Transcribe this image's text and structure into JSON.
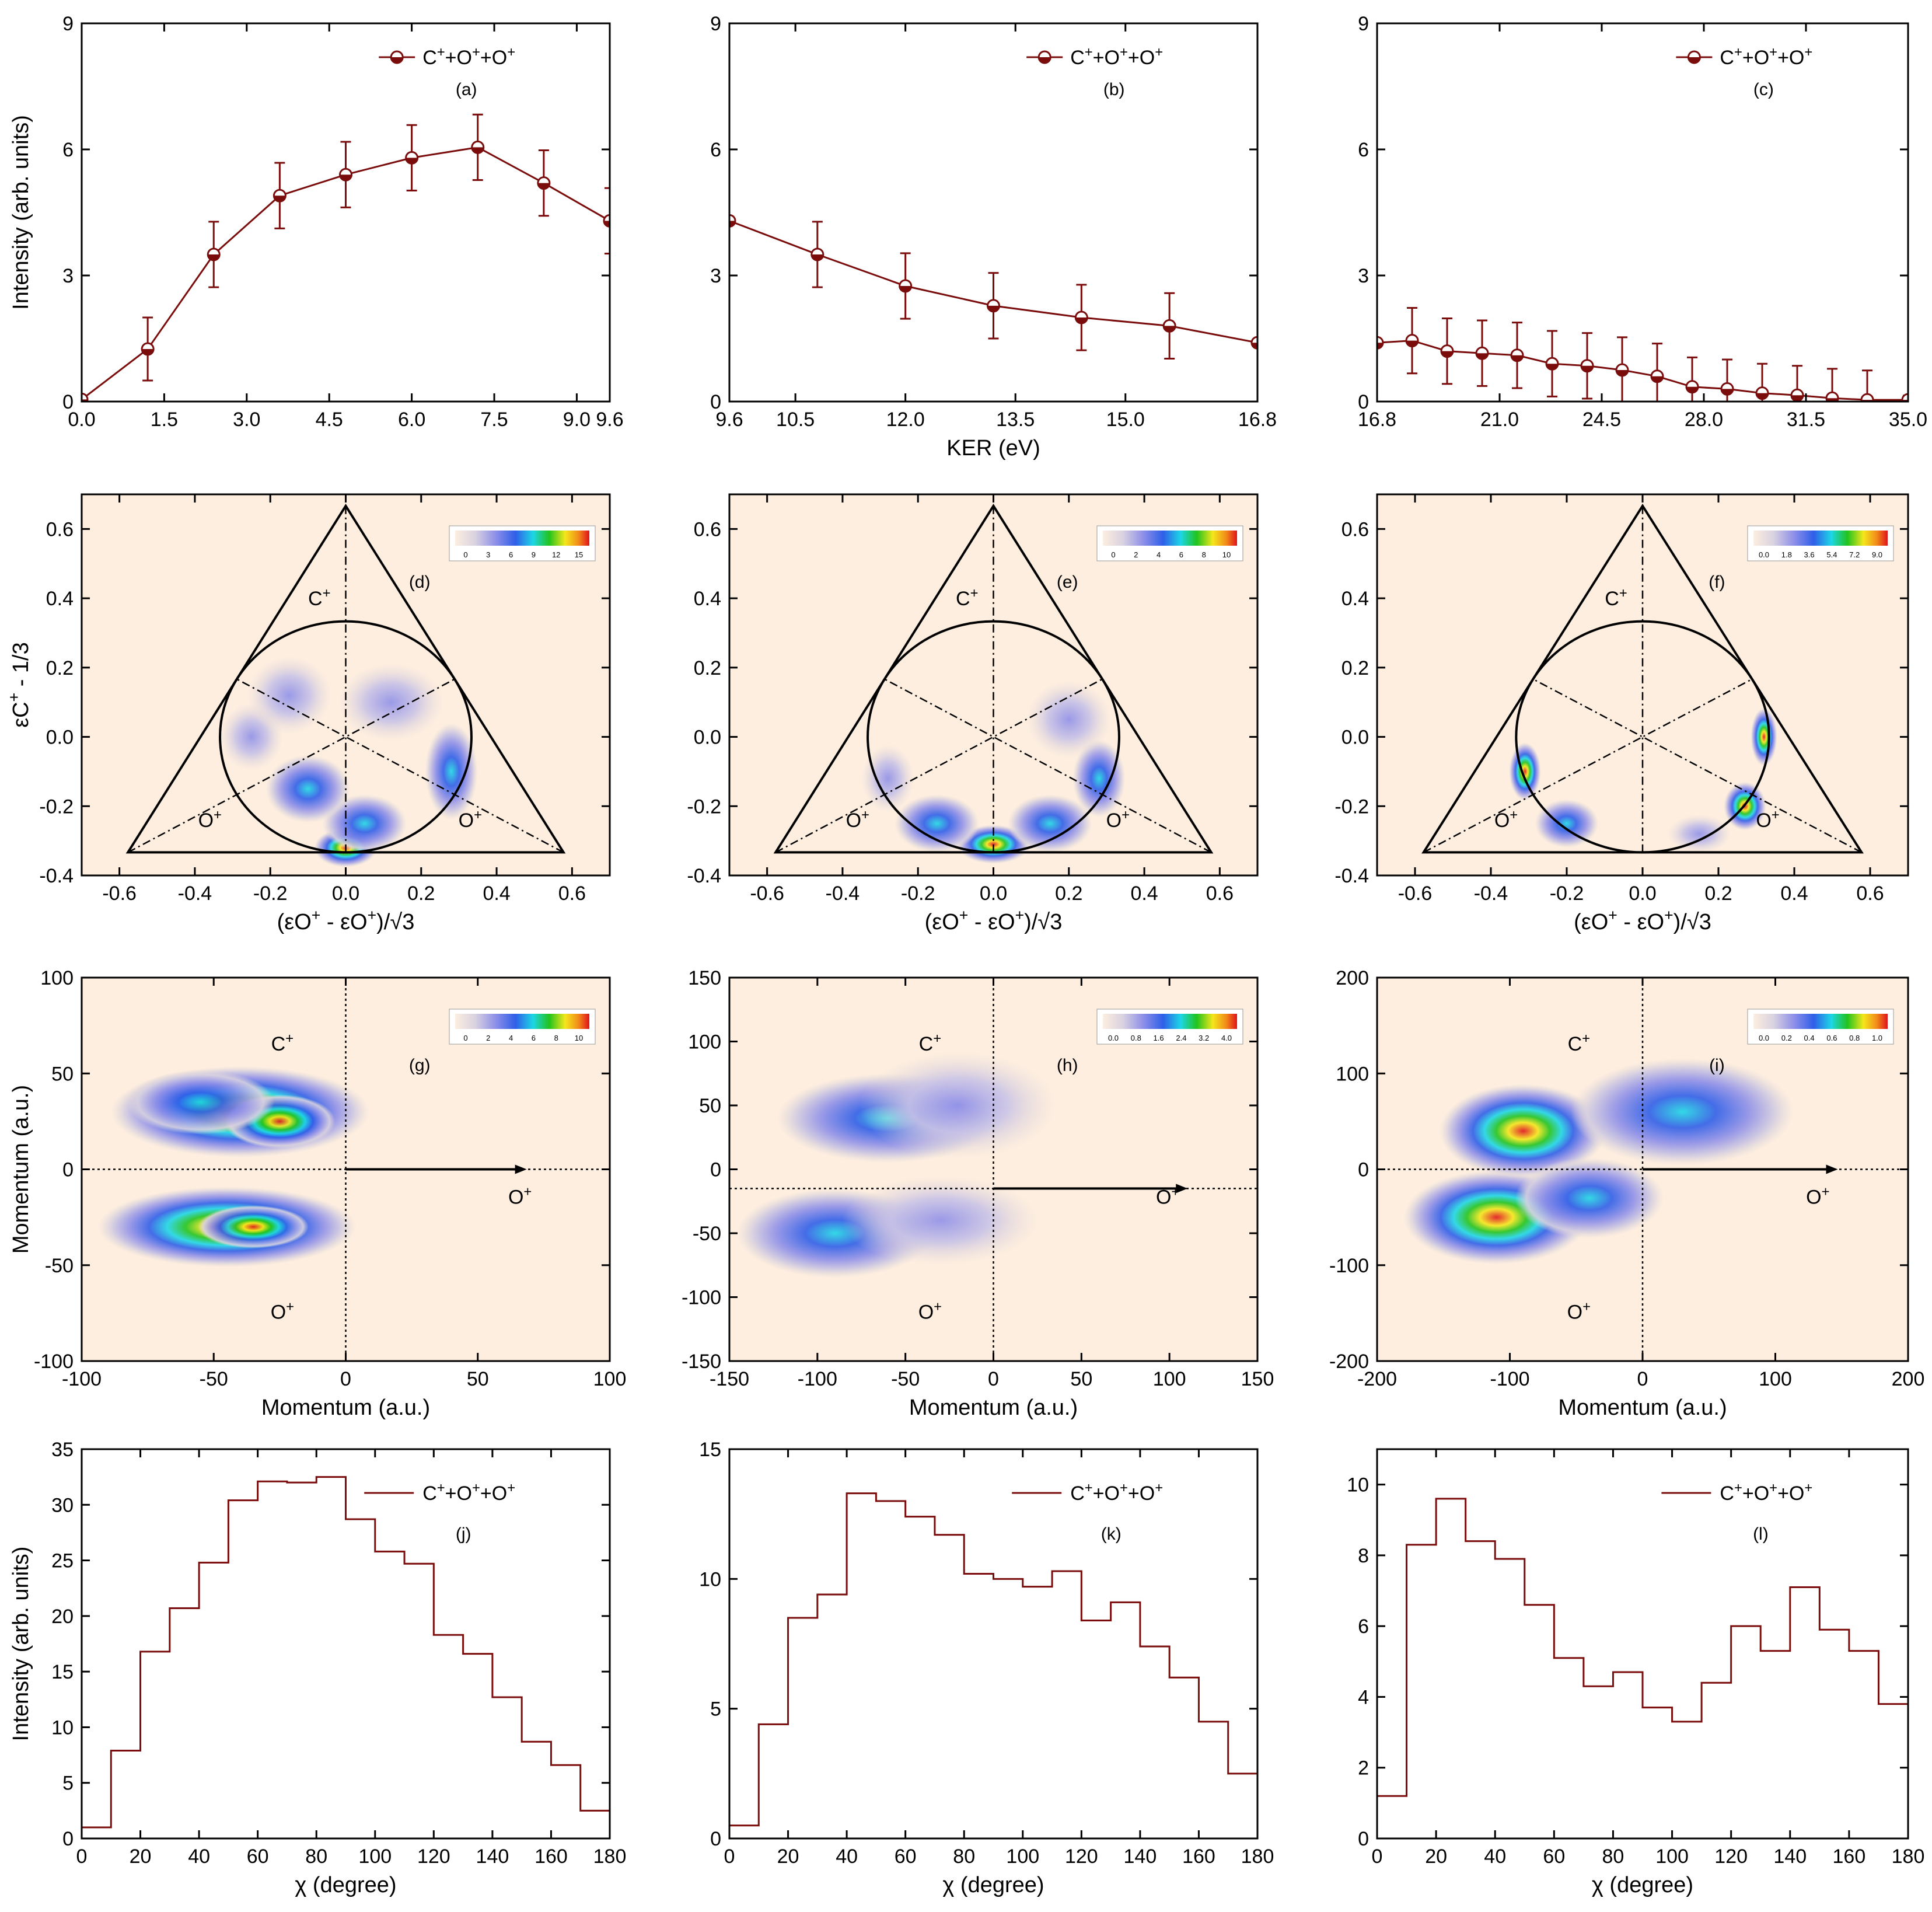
{
  "colors": {
    "series": "#7a0c0c",
    "background": "#fdeee0"
  },
  "chart_data": [
    {
      "id": "a",
      "type": "line",
      "label": "(a)",
      "legend": "C⁺+O⁺+O⁺",
      "xlabel": "",
      "ylabel": "Intensity (arb. units)",
      "xlim": [
        0,
        9.6
      ],
      "ylim": [
        0,
        9
      ],
      "xticks": [
        "0.0",
        "1.5",
        "3.0",
        "4.5",
        "6.0",
        "7.5",
        "9.0",
        "9.6"
      ],
      "yticks": [
        "0",
        "3",
        "6",
        "9"
      ],
      "x": [
        0,
        1.2,
        2.4,
        3.6,
        4.8,
        6.0,
        7.2,
        8.4,
        9.6
      ],
      "y": [
        0.05,
        1.25,
        3.5,
        4.9,
        5.4,
        5.8,
        6.05,
        5.2,
        4.3
      ],
      "err": [
        0.05,
        0.75,
        0.78,
        0.78,
        0.78,
        0.78,
        0.78,
        0.78,
        0.78
      ]
    },
    {
      "id": "b",
      "type": "line",
      "label": "(b)",
      "legend": "C⁺+O⁺+O⁺",
      "xlabel": "KER (eV)",
      "ylabel": "",
      "xlim": [
        9.6,
        16.8
      ],
      "ylim": [
        0,
        9
      ],
      "xticks": [
        "9.6",
        "10.5",
        "12.0",
        "13.5",
        "15.0",
        "16.8"
      ],
      "yticks": [
        "0",
        "3",
        "6",
        "9"
      ],
      "x": [
        9.6,
        10.8,
        12.0,
        13.2,
        14.4,
        15.6,
        16.8
      ],
      "y": [
        4.3,
        3.5,
        2.75,
        2.28,
        2.0,
        1.8,
        1.4
      ],
      "err": [
        0,
        0.78,
        0.78,
        0.78,
        0.78,
        0.78,
        0
      ]
    },
    {
      "id": "c",
      "type": "line",
      "label": "(c)",
      "legend": "C⁺+O⁺+O⁺",
      "xlabel": "",
      "ylabel": "",
      "xlim": [
        16.8,
        35.0
      ],
      "ylim": [
        0,
        9
      ],
      "xticks": [
        "16.8",
        "21.0",
        "24.5",
        "28.0",
        "31.5",
        "35.0"
      ],
      "yticks": [
        "0",
        "3",
        "6",
        "9"
      ],
      "x": [
        16.8,
        18.0,
        19.2,
        20.4,
        21.6,
        22.8,
        24.0,
        25.2,
        26.4,
        27.6,
        28.8,
        30.0,
        31.2,
        32.4,
        33.6,
        35.0
      ],
      "y": [
        1.4,
        1.45,
        1.2,
        1.15,
        1.1,
        0.9,
        0.85,
        0.75,
        0.6,
        0.35,
        0.3,
        0.2,
        0.15,
        0.08,
        0.04,
        0.04
      ],
      "err": [
        0,
        0.78,
        0.78,
        0.78,
        0.78,
        0.78,
        0.78,
        0.78,
        0.78,
        0.7,
        0.7,
        0.7,
        0.7,
        0.7,
        0.7,
        0.1
      ]
    },
    {
      "id": "d",
      "type": "heatmap",
      "label": "(d)",
      "xlabel": "(εO⁺ - εO⁺)/√3",
      "ylabel": "εC⁺ - 1/3",
      "xlim": [
        -0.7,
        0.7
      ],
      "ylim": [
        -0.4,
        0.7
      ],
      "xticks": [
        "-0.6",
        "-0.4",
        "-0.2",
        "0.0",
        "0.2",
        "0.4",
        "0.6"
      ],
      "yticks": [
        "-0.4",
        "-0.2",
        "0.0",
        "0.2",
        "0.4",
        "0.6"
      ],
      "colorbar": [
        "0",
        "3",
        "6",
        "9",
        "12",
        "15"
      ],
      "ions": [
        "C⁺",
        "O⁺",
        "O⁺"
      ],
      "blobs": [
        [
          0.0,
          -0.32,
          0.06,
          0.04,
          1.0
        ],
        [
          0.05,
          -0.25,
          0.08,
          0.06,
          0.7
        ],
        [
          -0.1,
          -0.15,
          0.08,
          0.07,
          0.5
        ],
        [
          0.28,
          -0.1,
          0.05,
          0.1,
          0.65
        ],
        [
          -0.25,
          0.0,
          0.06,
          0.07,
          0.45
        ],
        [
          0.12,
          0.1,
          0.1,
          0.08,
          0.35
        ],
        [
          -0.15,
          0.12,
          0.08,
          0.08,
          0.3
        ]
      ]
    },
    {
      "id": "e",
      "type": "heatmap",
      "label": "(e)",
      "xlabel": "(εO⁺ - εO⁺)/√3",
      "ylabel": "",
      "xlim": [
        -0.7,
        0.7
      ],
      "ylim": [
        -0.4,
        0.7
      ],
      "xticks": [
        "-0.6",
        "-0.4",
        "-0.2",
        "0.0",
        "0.2",
        "0.4",
        "0.6"
      ],
      "yticks": [
        "-0.4",
        "-0.2",
        "0.0",
        "0.2",
        "0.4",
        "0.6"
      ],
      "colorbar": [
        "0",
        "2",
        "4",
        "6",
        "8",
        "10"
      ],
      "ions": [
        "C⁺",
        "O⁺",
        "O⁺"
      ],
      "blobs": [
        [
          0.0,
          -0.31,
          0.07,
          0.04,
          0.9
        ],
        [
          0.15,
          -0.25,
          0.08,
          0.06,
          0.6
        ],
        [
          -0.15,
          -0.25,
          0.08,
          0.06,
          0.5
        ],
        [
          0.28,
          -0.12,
          0.05,
          0.08,
          0.55
        ],
        [
          -0.28,
          -0.12,
          0.05,
          0.07,
          0.4
        ],
        [
          0.2,
          0.05,
          0.08,
          0.08,
          0.3
        ]
      ]
    },
    {
      "id": "f",
      "type": "heatmap",
      "label": "(f)",
      "xlabel": "(εO⁺ - εO⁺)/√3",
      "ylabel": "",
      "xlim": [
        -0.7,
        0.7
      ],
      "ylim": [
        -0.4,
        0.7
      ],
      "xticks": [
        "-0.6",
        "-0.4",
        "-0.2",
        "0.0",
        "0.2",
        "0.4",
        "0.6"
      ],
      "yticks": [
        "-0.4",
        "-0.2",
        "0.0",
        "0.2",
        "0.4",
        "0.6"
      ],
      "colorbar": [
        "0.0",
        "1.8",
        "3.6",
        "5.4",
        "7.2",
        "9.0"
      ],
      "ions": [
        "C⁺",
        "O⁺",
        "O⁺"
      ],
      "blobs": [
        [
          -0.31,
          -0.1,
          0.03,
          0.06,
          1.0
        ],
        [
          0.32,
          0.0,
          0.025,
          0.06,
          1.0
        ],
        [
          0.27,
          -0.2,
          0.04,
          0.05,
          0.85
        ],
        [
          -0.2,
          -0.25,
          0.06,
          0.05,
          0.5
        ],
        [
          0.15,
          -0.28,
          0.06,
          0.04,
          0.4
        ]
      ]
    },
    {
      "id": "g",
      "type": "heatmap",
      "label": "(g)",
      "xlabel": "Momentum (a.u.)",
      "ylabel": "Momentum (a.u.)",
      "xlim": [
        -100,
        100
      ],
      "ylim": [
        -100,
        100
      ],
      "xticks": [
        "-100",
        "-50",
        "0",
        "50",
        "100"
      ],
      "yticks": [
        "-100",
        "-50",
        "0",
        "50",
        "100"
      ],
      "colorbar": [
        "0",
        "2",
        "4",
        "6",
        "8",
        "10"
      ],
      "ions": [
        "C⁺",
        "O⁺",
        "O⁺"
      ],
      "arrow_y": 0,
      "arrow_xmax": 65,
      "blobs": [
        [
          -40,
          30,
          35,
          17,
          1.0
        ],
        [
          -25,
          25,
          15,
          10,
          0.95
        ],
        [
          -45,
          -30,
          35,
          15,
          0.95
        ],
        [
          -35,
          -30,
          15,
          8,
          0.95
        ],
        [
          -55,
          35,
          20,
          12,
          0.7
        ]
      ]
    },
    {
      "id": "h",
      "type": "heatmap",
      "label": "(h)",
      "xlabel": "Momentum (a.u.)",
      "ylabel": "",
      "xlim": [
        -150,
        150
      ],
      "ylim": [
        -150,
        150
      ],
      "xticks": [
        "-150",
        "-100",
        "-50",
        "0",
        "50",
        "100",
        "150"
      ],
      "yticks": [
        "-150",
        "-100",
        "-50",
        "0",
        "50",
        "100",
        "150"
      ],
      "colorbar": [
        "0.0",
        "0.8",
        "1.6",
        "2.4",
        "3.2",
        "4.0"
      ],
      "ions": [
        "C⁺",
        "O⁺",
        "O⁺"
      ],
      "arrow_y": -15,
      "arrow_xmax": 105,
      "blobs": [
        [
          -60,
          40,
          45,
          25,
          0.75
        ],
        [
          -90,
          -50,
          40,
          25,
          0.75
        ],
        [
          -20,
          50,
          40,
          30,
          0.4
        ],
        [
          -30,
          -40,
          40,
          25,
          0.4
        ]
      ]
    },
    {
      "id": "i",
      "type": "heatmap",
      "label": "(i)",
      "xlabel": "Momentum (a.u.)",
      "ylabel": "",
      "xlim": [
        -200,
        200
      ],
      "ylim": [
        -200,
        200
      ],
      "xticks": [
        "-200",
        "-100",
        "0",
        "100",
        "200"
      ],
      "yticks": [
        "-200",
        "-100",
        "0",
        "100",
        "200"
      ],
      "colorbar": [
        "0.0",
        "0.2",
        "0.4",
        "0.6",
        "0.8",
        "1.0"
      ],
      "ions": [
        "C⁺",
        "O⁺",
        "O⁺"
      ],
      "arrow_y": 0,
      "arrow_xmax": 140,
      "blobs": [
        [
          -110,
          -50,
          50,
          35,
          1.0
        ],
        [
          -90,
          40,
          45,
          35,
          0.95
        ],
        [
          30,
          60,
          60,
          40,
          0.7
        ],
        [
          -40,
          -30,
          40,
          30,
          0.7
        ]
      ]
    },
    {
      "id": "j",
      "type": "step",
      "label": "(j)",
      "legend": "C⁺+O⁺+O⁺",
      "xlabel": "χ (degree)",
      "ylabel": "Intensity (arb. units)",
      "xlim": [
        0,
        180
      ],
      "ylim": [
        0,
        35
      ],
      "xticks": [
        "0",
        "20",
        "40",
        "60",
        "80",
        "100",
        "120",
        "140",
        "160",
        "180"
      ],
      "yticks": [
        "0",
        "5",
        "10",
        "15",
        "20",
        "25",
        "30",
        "35"
      ],
      "bin_width": 10,
      "values": [
        1.0,
        7.9,
        16.8,
        20.7,
        24.8,
        30.4,
        32.1,
        32.0,
        32.5,
        28.7,
        25.8,
        24.7,
        18.3,
        16.6,
        12.7,
        8.7,
        6.6,
        2.5
      ]
    },
    {
      "id": "k",
      "type": "step",
      "label": "(k)",
      "legend": "C⁺+O⁺+O⁺",
      "xlabel": "χ (degree)",
      "ylabel": "",
      "xlim": [
        0,
        180
      ],
      "ylim": [
        0,
        15
      ],
      "xticks": [
        "0",
        "20",
        "40",
        "60",
        "80",
        "100",
        "120",
        "140",
        "160",
        "180"
      ],
      "yticks": [
        "0",
        "5",
        "10",
        "15"
      ],
      "bin_width": 10,
      "values": [
        0.5,
        4.4,
        8.5,
        9.4,
        13.3,
        13.0,
        12.4,
        11.7,
        10.2,
        10.0,
        9.7,
        10.3,
        8.4,
        9.1,
        7.4,
        6.2,
        4.5,
        2.5
      ]
    },
    {
      "id": "l",
      "type": "step",
      "label": "(l)",
      "legend": "C⁺+O⁺+O⁺",
      "xlabel": "χ (degree)",
      "ylabel": "",
      "xlim": [
        0,
        180
      ],
      "ylim": [
        0,
        11
      ],
      "xticks": [
        "0",
        "20",
        "40",
        "60",
        "80",
        "100",
        "120",
        "140",
        "160",
        "180"
      ],
      "yticks": [
        "0",
        "2",
        "4",
        "6",
        "8",
        "10"
      ],
      "bin_width": 10,
      "values": [
        1.2,
        8.3,
        9.6,
        8.4,
        7.9,
        6.6,
        5.1,
        4.3,
        4.7,
        3.7,
        3.3,
        4.4,
        6.0,
        5.3,
        7.1,
        5.9,
        5.3,
        3.8
      ]
    }
  ]
}
